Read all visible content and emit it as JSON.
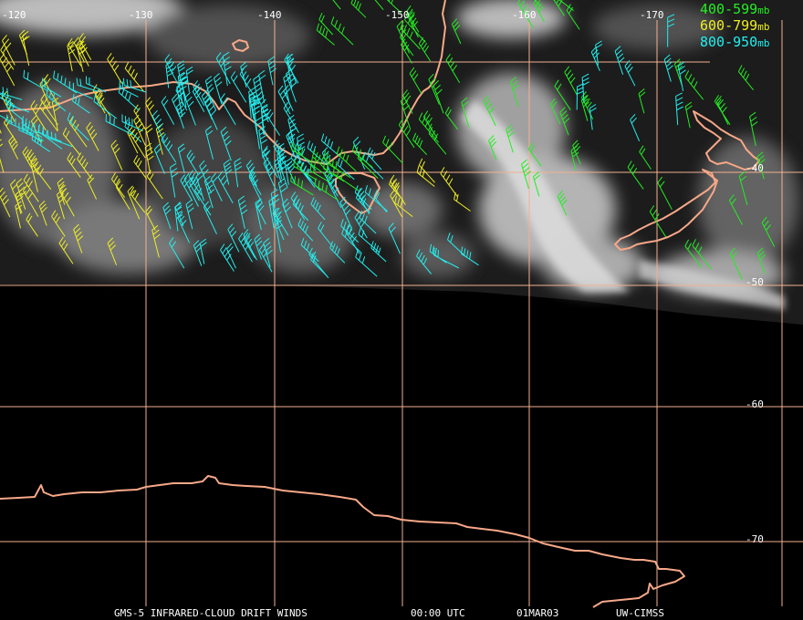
{
  "map": {
    "longitude_labels": [
      "-120",
      "-130",
      "-140",
      "-150",
      "-160",
      "-170"
    ],
    "latitude_labels": [
      "-40",
      "-50",
      "-60",
      "-70"
    ],
    "grid_color": "#f4b090",
    "coast_color": "#f7a888",
    "background_color": "#000000"
  },
  "legend": [
    {
      "range": "400-599",
      "unit": "mb",
      "color": "#22ee22"
    },
    {
      "range": "600-799",
      "unit": "mb",
      "color": "#eeee22"
    },
    {
      "range": "800-950",
      "unit": "mb",
      "color": "#22eeee"
    }
  ],
  "footer": {
    "product": "GMS-5 INFRARED-CLOUD DRIFT WINDS",
    "time": "00:00 UTC",
    "date": "01MAR03",
    "source": "UW-CIMSS"
  }
}
